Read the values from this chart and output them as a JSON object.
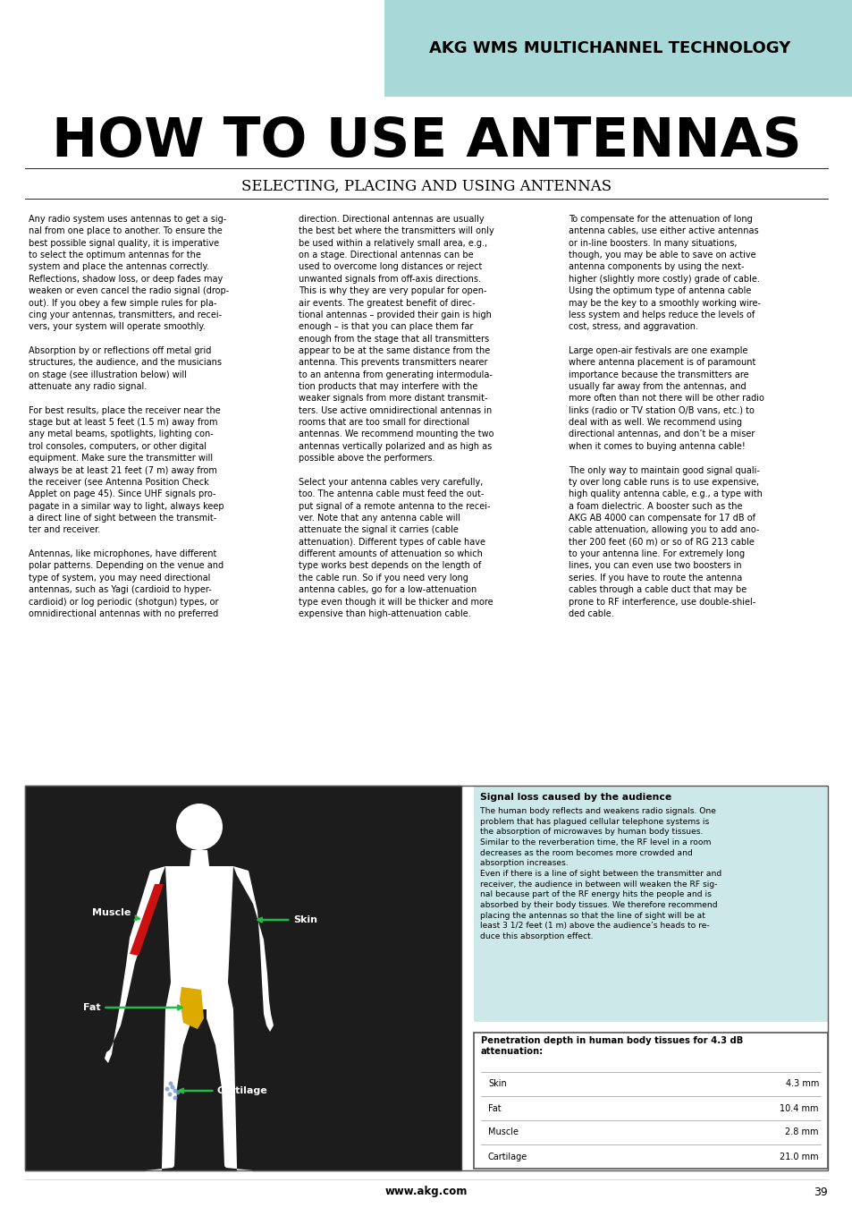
{
  "header_bg_color": "#a8d8d8",
  "header_text": "AKG WMS MULTICHANNEL TECHNOLOGY",
  "title": "HOW TO USE ANTENNAS",
  "subtitle": "SELECTING, PLACING AND USING ANTENNAS",
  "page_bg_color": "#e8f4f4",
  "footer_text": "www.akg.com",
  "page_number": "39",
  "signal_loss_title": "Signal loss caused by the audience",
  "signal_loss_text": "The human body reflects and weakens radio signals. One\nproblem that has plagued cellular telephone systems is\nthe absorption of microwaves by human body tissues.\nSimilar to the reverberation time, the RF level in a room\ndecreases as the room becomes more crowded and\nabsorption increases.\nEven if there is a line of sight between the transmitter and\nreceiver, the audience in between will weaken the RF sig-\nnal because part of the RF energy hits the people and is\nabsorbed by their body tissues. We therefore recommend\nplacing the antennas so that the line of sight will be at\nleast 3 1/2 feet (1 m) above the audience’s heads to re-\nduce this absorption effect.",
  "table_title": "Penetration depth in human body tissues for 4.3 dB\nattenuation:",
  "table_data": [
    [
      "Skin",
      "4.3 mm"
    ],
    [
      "Fat",
      "10.4 mm"
    ],
    [
      "Muscle",
      "2.8 mm"
    ],
    [
      "Cartilage",
      "21.0 mm"
    ]
  ],
  "col1_text": "Any radio system uses antennas to get a sig-\nnal from one place to another. To ensure the\nbest possible signal quality, it is imperative\nto select the optimum antennas for the\nsystem and place the antennas correctly.\nReflections, shadow loss, or deep fades may\nweaken or even cancel the radio signal (drop-\nout). If you obey a few simple rules for pla-\ncing your antennas, transmitters, and recei-\nvers, your system will operate smoothly.\n\nAbsorption by or reflections off metal grid\nstructures, the audience, and the musicians\non stage (see illustration below) will\nattenuate any radio signal.\n\nFor best results, place the receiver near the\nstage but at least 5 feet (1.5 m) away from\nany metal beams, spotlights, lighting con-\ntrol consoles, computers, or other digital\nequipment. Make sure the transmitter will\nalways be at least 21 feet (7 m) away from\nthe receiver (see Antenna Position Check\nApplet on page 45). Since UHF signals pro-\npagate in a similar way to light, always keep\na direct line of sight between the transmit-\nter and receiver.\n\nAntennas, like microphones, have different\npolar patterns. Depending on the venue and\ntype of system, you may need directional\nantennas, such as Yagi (cardioid to hyper-\ncardioid) or log periodic (shotgun) types, or\nomnidirectional antennas with no preferred",
  "col2_text": "direction. Directional antennas are usually\nthe best bet where the transmitters will only\nbe used within a relatively small area, e.g.,\non a stage. Directional antennas can be\nused to overcome long distances or reject\nunwanted signals from off-axis directions.\nThis is why they are very popular for open-\nair events. The greatest benefit of direc-\ntional antennas – provided their gain is high\nenough – is that you can place them far\nenough from the stage that all transmitters\nappear to be at the same distance from the\nantenna. This prevents transmitters nearer\nto an antenna from generating intermodula-\ntion products that may interfere with the\nweaker signals from more distant transmit-\nters. Use active omnidirectional antennas in\nrooms that are too small for directional\nantennas. We recommend mounting the two\nantennas vertically polarized and as high as\npossible above the performers.\n\nSelect your antenna cables very carefully,\ntoo. The antenna cable must feed the out-\nput signal of a remote antenna to the recei-\nver. Note that any antenna cable will\nattenuate the signal it carries (cable\nattenuation). Different types of cable have\ndifferent amounts of attenuation so which\ntype works best depends on the length of\nthe cable run. So if you need very long\nantenna cables, go for a low-attenuation\ntype even though it will be thicker and more\nexpensive than high-attenuation cable.",
  "col3_text": "To compensate for the attenuation of long\nantenna cables, use either active antennas\nor in-line boosters. In many situations,\nthough, you may be able to save on active\nantenna components by using the next-\nhigher (slightly more costly) grade of cable.\nUsing the optimum type of antenna cable\nmay be the key to a smoothly working wire-\nless system and helps reduce the levels of\ncost, stress, and aggravation.\n\nLarge open-air festivals are one example\nwhere antenna placement is of paramount\nimportance because the transmitters are\nusually far away from the antennas, and\nmore often than not there will be other radio\nlinks (radio or TV station O/B vans, etc.) to\ndeal with as well. We recommend using\ndirectional antennas, and don’t be a miser\nwhen it comes to buying antenna cable!\n\nThe only way to maintain good signal quali-\nty over long cable runs is to use expensive,\nhigh quality antenna cable, e.g., a type with\na foam dielectric. A booster such as the\nAKG AB 4000 can compensate for 17 dB of\ncable attenuation, allowing you to add ano-\nther 200 feet (60 m) or so of RG 213 cable\nto your antenna line. For extremely long\nlines, you can even use two boosters in\nseries. If you have to route the antenna\ncables through a cable duct that may be\nprone to RF interference, use double-shiel-\nded cable."
}
